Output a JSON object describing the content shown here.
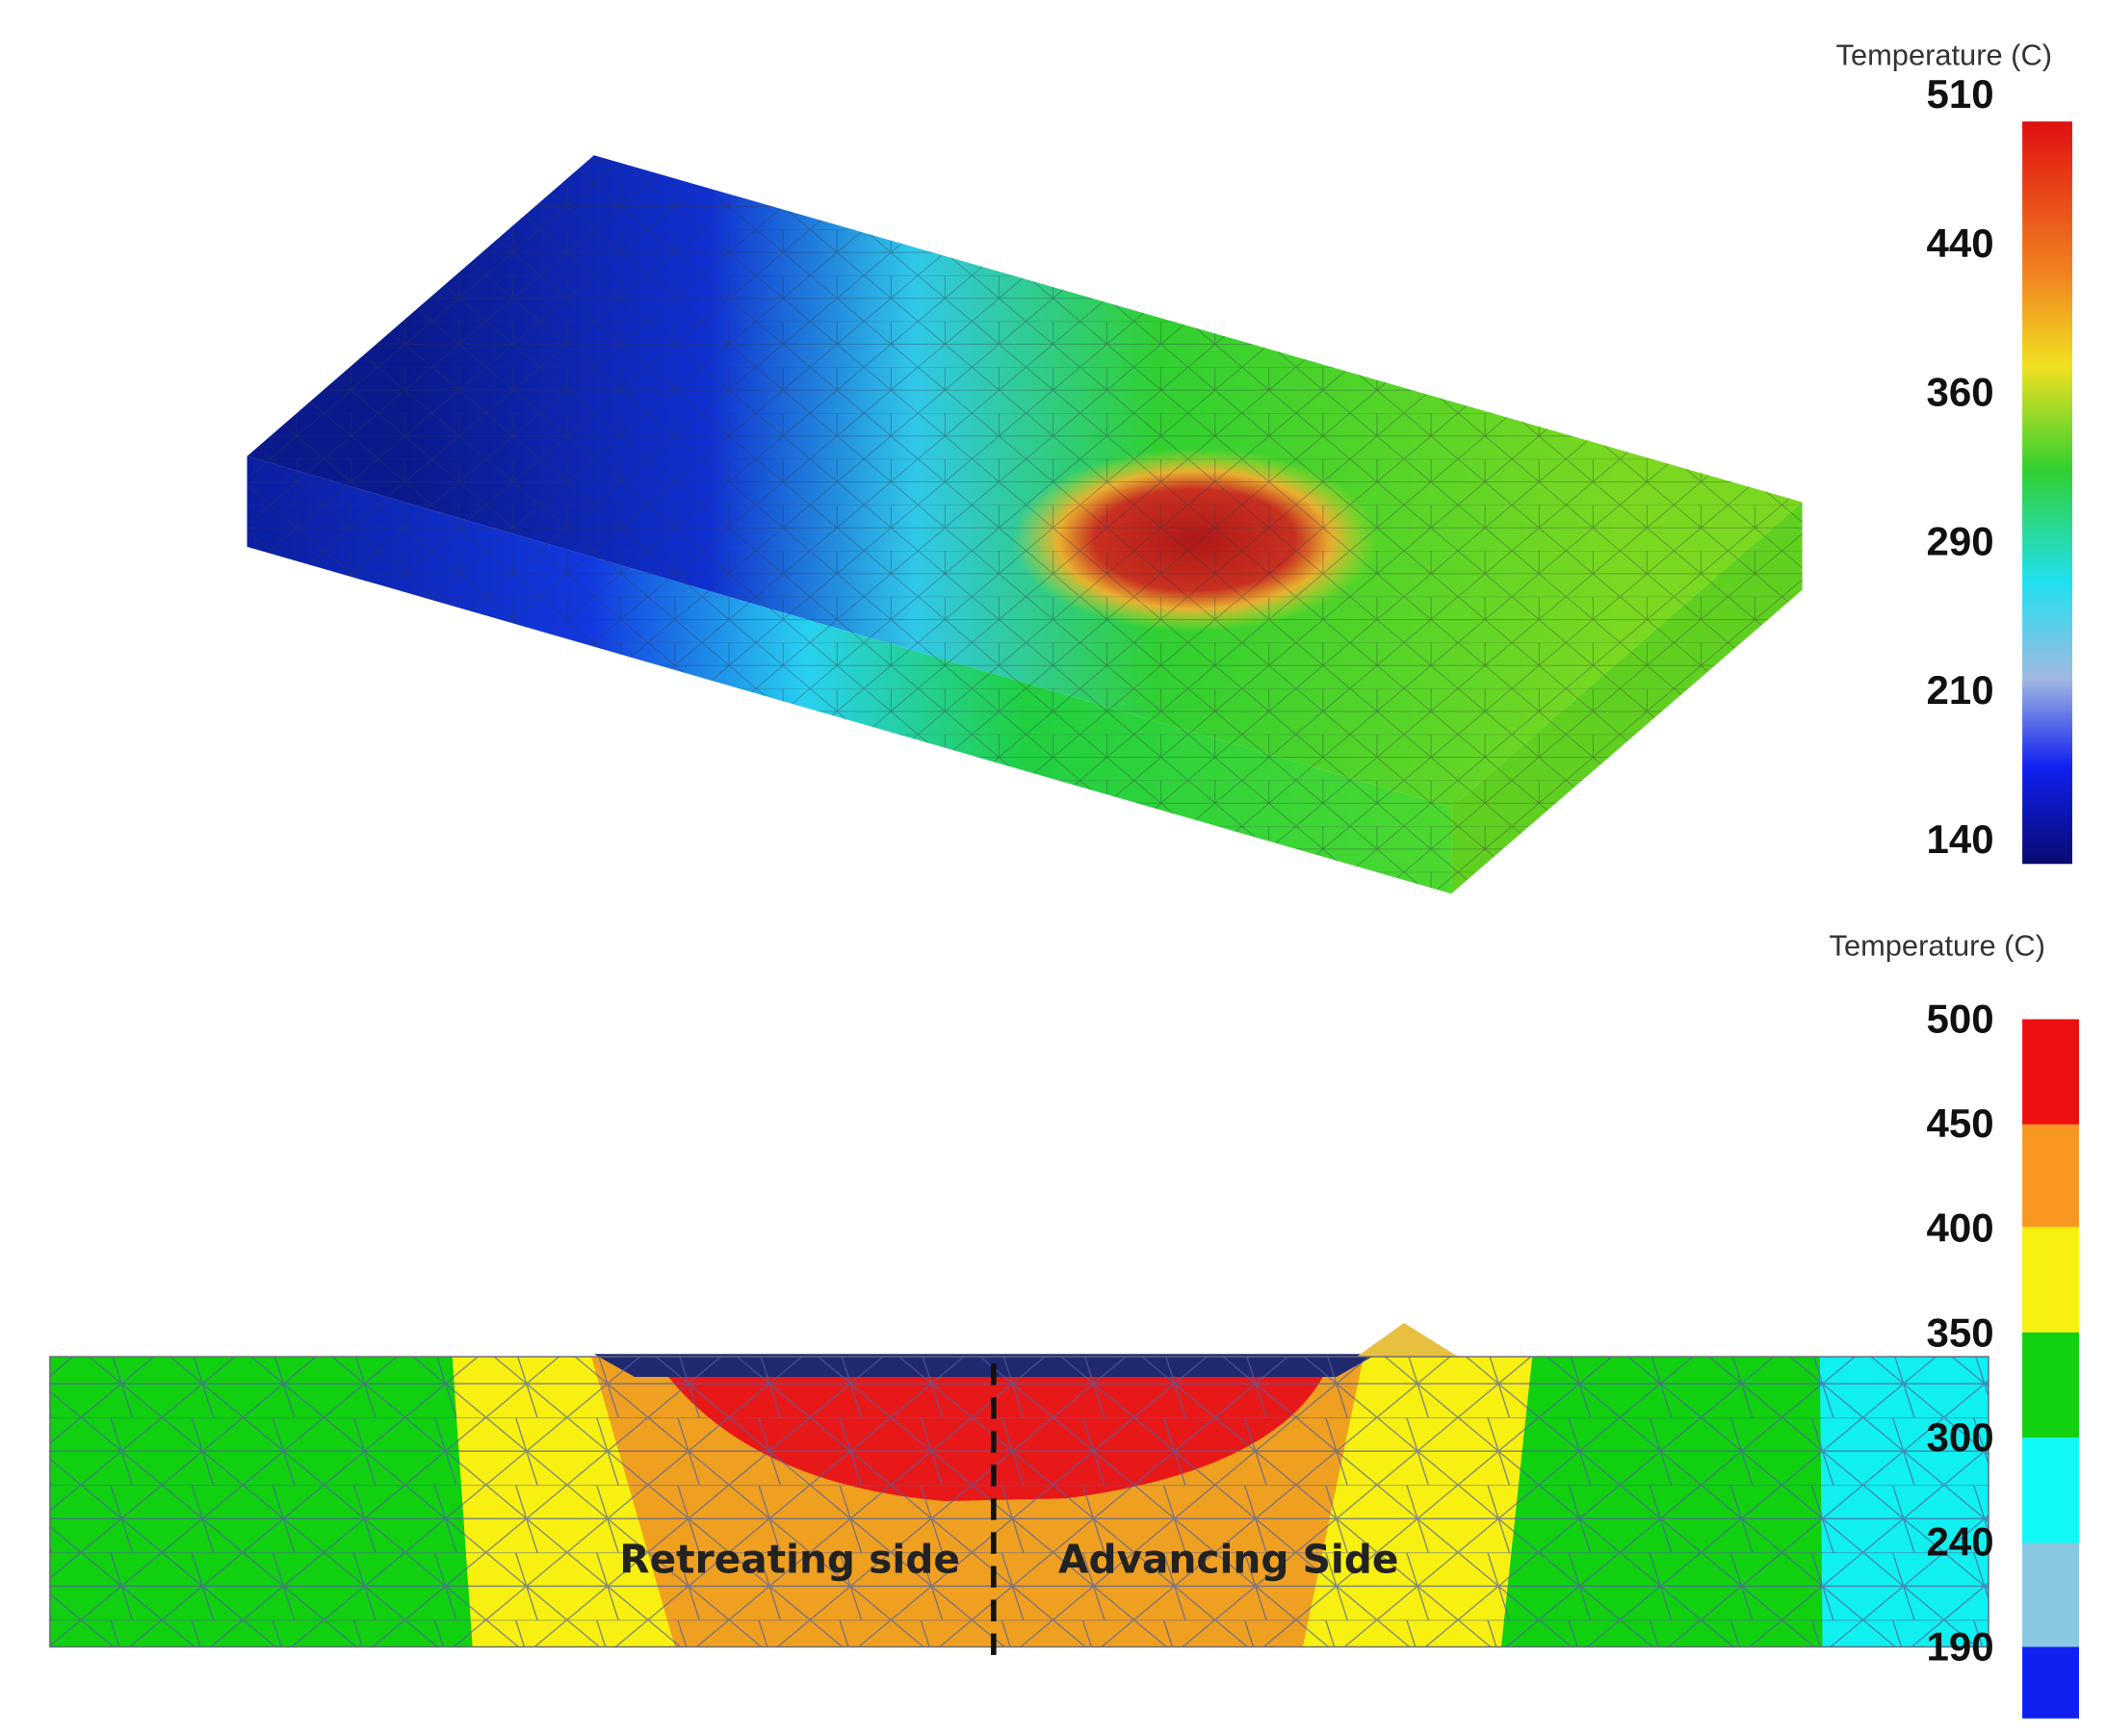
{
  "panels": [
    {
      "legend": {
        "title": "Temperature (C)",
        "ticks": [
          "510",
          "440",
          "360",
          "290",
          "210",
          "140"
        ]
      }
    },
    {
      "legend": {
        "title": "Temperature (C)",
        "ticks": [
          "500",
          "450",
          "400",
          "350",
          "300",
          "240",
          "190"
        ]
      },
      "labels": [
        "Retreating side",
        "Advancing Side"
      ]
    }
  ]
}
